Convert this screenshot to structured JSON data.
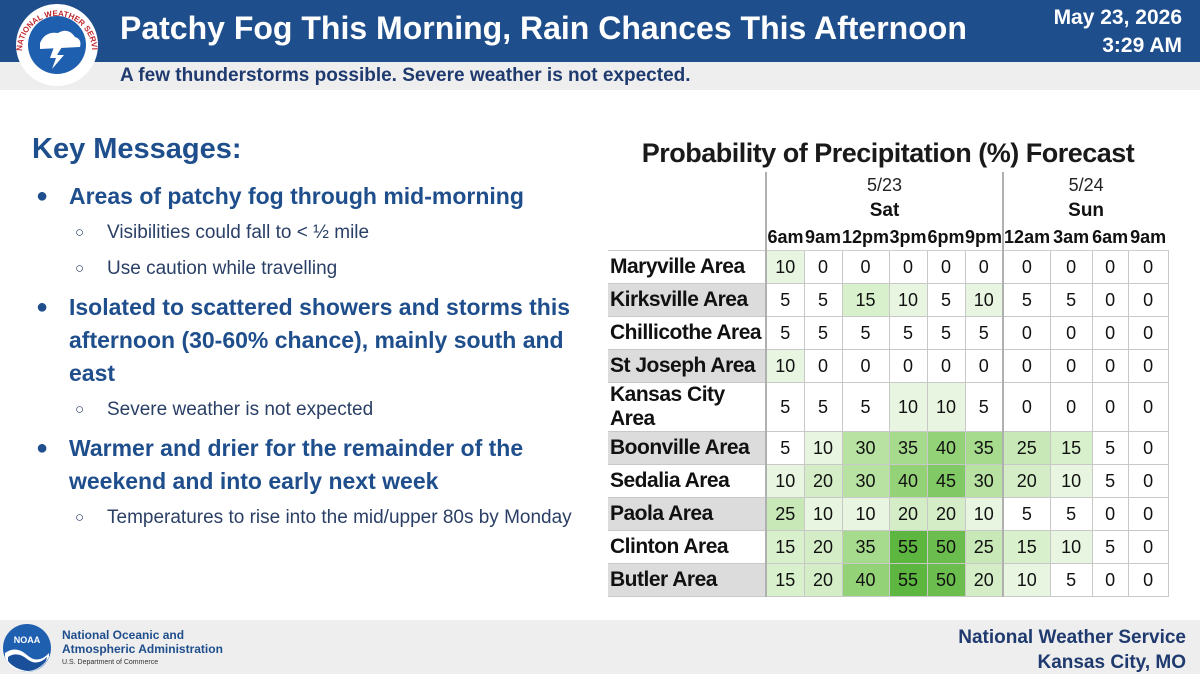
{
  "header": {
    "title": "Patchy Fog This Morning, Rain Chances This Afternoon",
    "date": "May 23, 2026",
    "time": "3:29 AM",
    "subtitle": "A few thunderstorms possible. Severe weather is not expected.",
    "logo_text": "NATIONAL WEATHER SERVICE"
  },
  "key_messages": {
    "title": "Key Messages:",
    "items": [
      {
        "text": "Areas of patchy fog through mid-morning",
        "subs": [
          "Visibilities could fall to < ½ mile",
          "Use caution while travelling"
        ]
      },
      {
        "text": "Isolated to scattered showers and storms this afternoon (30-60% chance), mainly south and east",
        "subs": [
          "Severe weather is not expected"
        ]
      },
      {
        "text": "Warmer and drier for the remainder of the weekend and into early next week",
        "subs": [
          "Temperatures to rise into the mid/upper 80s by Monday"
        ]
      }
    ]
  },
  "chart_data": {
    "type": "table",
    "title": "Probability of Precipitation (%) Forecast",
    "days": [
      {
        "date": "5/23",
        "name": "Sat",
        "hours": [
          "6am",
          "9am",
          "12pm",
          "3pm",
          "6pm",
          "9pm"
        ]
      },
      {
        "date": "5/24",
        "name": "Sun",
        "hours": [
          "12am",
          "3am",
          "6am",
          "9am"
        ]
      }
    ],
    "columns": [
      "6am",
      "9am",
      "12pm",
      "3pm",
      "6pm",
      "9pm",
      "12am",
      "3am",
      "6am",
      "9am"
    ],
    "rows": [
      {
        "area": "Maryville Area",
        "values": [
          10,
          0,
          0,
          0,
          0,
          0,
          0,
          0,
          0,
          0
        ]
      },
      {
        "area": "Kirksville Area",
        "values": [
          5,
          5,
          15,
          10,
          5,
          10,
          5,
          5,
          0,
          0
        ]
      },
      {
        "area": "Chillicothe Area",
        "values": [
          5,
          5,
          5,
          5,
          5,
          5,
          0,
          0,
          0,
          0
        ]
      },
      {
        "area": "St Joseph Area",
        "values": [
          10,
          0,
          0,
          0,
          0,
          0,
          0,
          0,
          0,
          0
        ]
      },
      {
        "area": "Kansas City Area",
        "values": [
          5,
          5,
          5,
          10,
          10,
          5,
          0,
          0,
          0,
          0
        ]
      },
      {
        "area": "Boonville Area",
        "values": [
          5,
          10,
          30,
          35,
          40,
          35,
          25,
          15,
          5,
          0
        ]
      },
      {
        "area": "Sedalia Area",
        "values": [
          10,
          20,
          30,
          40,
          45,
          30,
          20,
          10,
          5,
          0
        ]
      },
      {
        "area": "Paola Area",
        "values": [
          25,
          10,
          10,
          20,
          20,
          10,
          5,
          5,
          0,
          0
        ]
      },
      {
        "area": "Clinton Area",
        "values": [
          15,
          20,
          35,
          55,
          50,
          25,
          15,
          10,
          5,
          0
        ]
      },
      {
        "area": "Butler Area",
        "values": [
          15,
          20,
          40,
          55,
          50,
          20,
          10,
          5,
          0,
          0
        ]
      }
    ]
  },
  "colors": {
    "header_bg": "#1f4e8c",
    "scale": {
      "0": "#ffffff",
      "5": "#ffffff",
      "10": "#e8f5e0",
      "15": "#d9f0cd",
      "20": "#d4edc7",
      "25": "#c8e8b8",
      "30": "#b8e2a2",
      "35": "#a6da8c",
      "40": "#94d278",
      "45": "#80c964",
      "50": "#6bbe4e",
      "55": "#5cb63f"
    }
  },
  "footer": {
    "noaa_logo": "NOAA",
    "noaa_line1": "National Oceanic and",
    "noaa_line2": "Atmospheric Administration",
    "noaa_dept": "U.S. Department of Commerce",
    "nws_line1": "National Weather Service",
    "nws_line2": "Kansas City, MO"
  }
}
